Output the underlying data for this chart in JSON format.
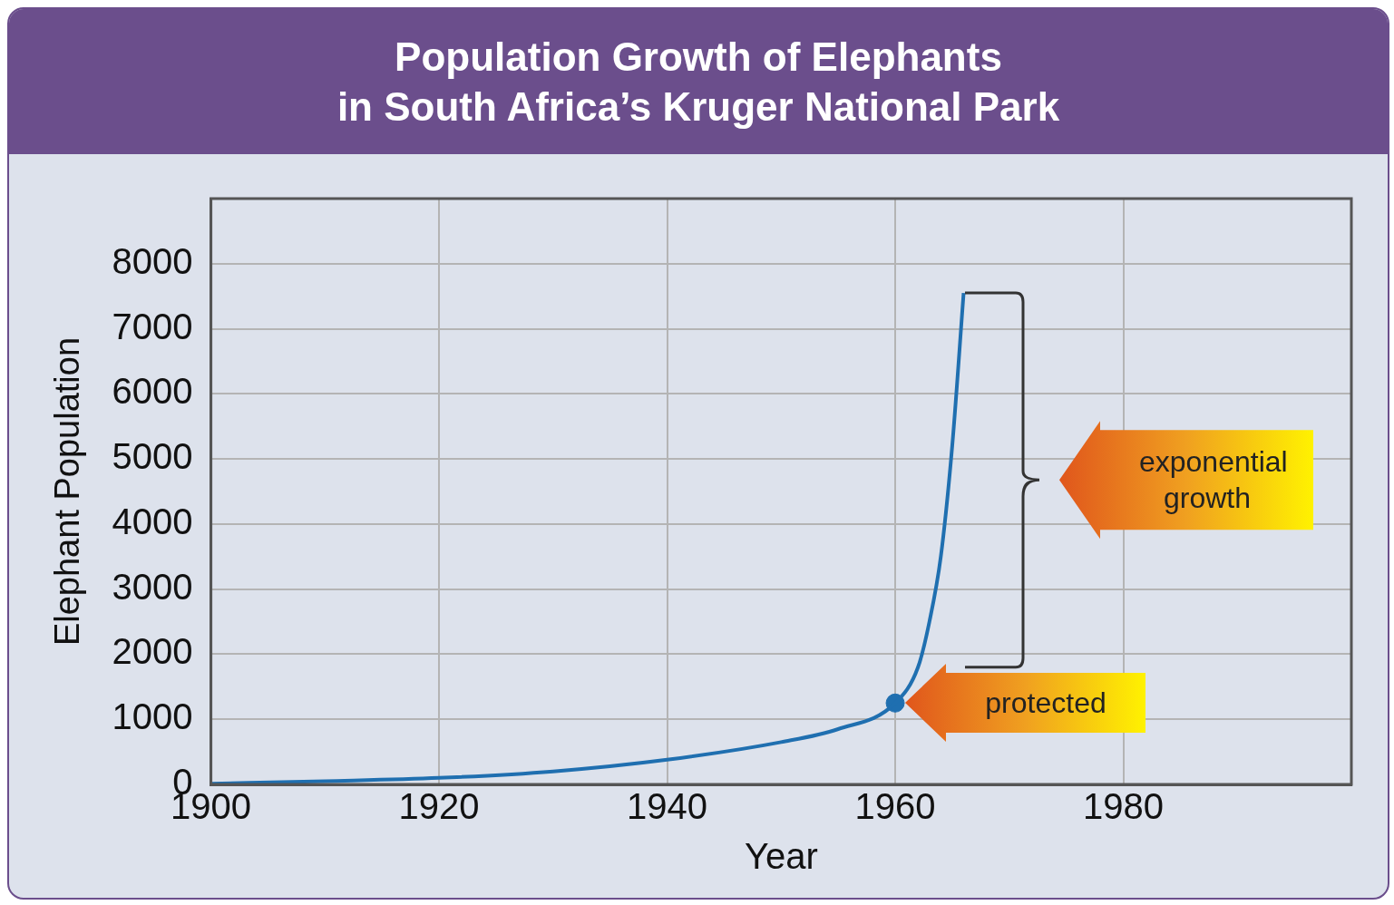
{
  "chart_data": {
    "type": "line",
    "title": "Population Growth of Elephants\nin South Africa’s Kruger National Park",
    "xlabel": "Year",
    "ylabel": "Elephant Population",
    "xlim": [
      1900,
      2000
    ],
    "xticks": [
      1900,
      1920,
      1940,
      1960,
      1980
    ],
    "ylim": [
      0,
      9000
    ],
    "yticks": [
      0,
      1000,
      2000,
      3000,
      4000,
      5000,
      6000,
      7000,
      8000
    ],
    "grid": true,
    "series": [
      {
        "type": "line",
        "color": "#1f6fb0",
        "marker": "none",
        "x": [
          1900,
          1910,
          1920,
          1930,
          1940,
          1950,
          1955,
          1960,
          1962,
          1963,
          1964,
          1965,
          1966
        ],
        "values": [
          10,
          50,
          100,
          200,
          380,
          650,
          850,
          1250,
          1800,
          2500,
          3500,
          5200,
          7550
        ]
      },
      {
        "type": "scatter",
        "color": "#1f6fb0",
        "marker": "circle",
        "x": [
          1960
        ],
        "values": [
          1250
        ]
      }
    ],
    "annotations": [
      "exponential growth",
      "protected"
    ]
  }
}
